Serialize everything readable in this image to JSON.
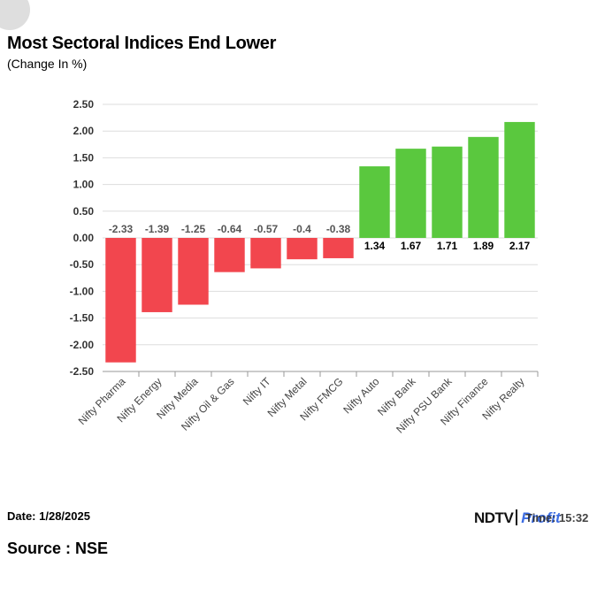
{
  "title": "Most Sectoral Indices End Lower",
  "subtitle": "(Change In %)",
  "footer": {
    "date": "Date: 1/28/2025",
    "source": "Source : NSE"
  },
  "brand": {
    "ndtv": "NDTV",
    "profit": "Profit",
    "time": "Time: 15:32"
  },
  "colors": {
    "negative": "#f2464e",
    "positive": "#5ac83e",
    "grid": "#dddddd",
    "axis": "#999999"
  },
  "chart_data": {
    "type": "bar",
    "categories": [
      "Nifty Pharma",
      "Nifty Energy",
      "Nifty Media",
      "Nifty Oil & Gas",
      "Nifty IT",
      "Nifty Metal",
      "Nifty FMCG",
      "Nifty Auto",
      "Nifty Bank",
      "Nifty PSU Bank",
      "Nifty Finance",
      "Nifty Realty"
    ],
    "values": [
      -2.33,
      -1.39,
      -1.25,
      -0.64,
      -0.57,
      -0.4,
      -0.38,
      1.34,
      1.67,
      1.71,
      1.89,
      2.17
    ],
    "labels": [
      "-2.33",
      "-1.39",
      "-1.25",
      "-0.64",
      "-0.57",
      "-0.4",
      "-0.38",
      "1.34",
      "1.67",
      "1.71",
      "1.89",
      "2.17"
    ],
    "yticks": [
      "2.50",
      "2.00",
      "1.50",
      "1.00",
      "0.50",
      "0.00",
      "-0.50",
      "-1.00",
      "-1.50",
      "-2.00",
      "-2.50"
    ],
    "ylim": [
      -2.5,
      2.5
    ],
    "title": "Most Sectoral Indices End Lower",
    "ylabel": "",
    "xlabel": "",
    "grid": true,
    "legend": "none"
  }
}
